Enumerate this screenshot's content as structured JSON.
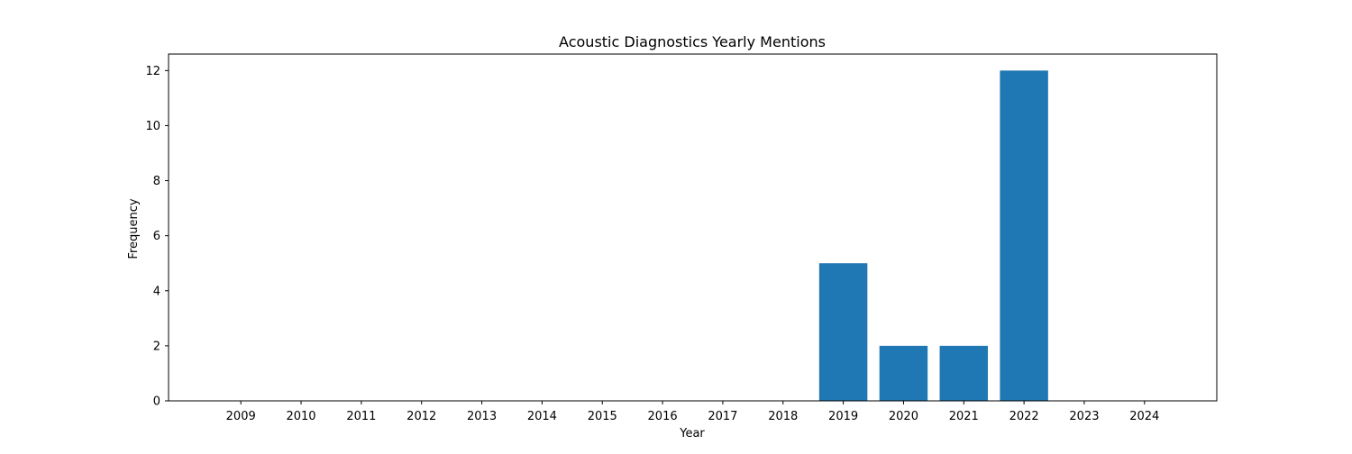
{
  "chart_data": {
    "type": "bar",
    "title": "Acoustic Diagnostics Yearly Mentions",
    "xlabel": "Year",
    "ylabel": "Frequency",
    "categories": [
      "2009",
      "2010",
      "2011",
      "2012",
      "2013",
      "2014",
      "2015",
      "2016",
      "2017",
      "2018",
      "2019",
      "2020",
      "2021",
      "2022",
      "2023",
      "2024"
    ],
    "values": [
      0,
      0,
      0,
      0,
      0,
      0,
      0,
      0,
      0,
      0,
      5,
      2,
      2,
      12,
      0,
      0
    ],
    "ylim": [
      0,
      12.6
    ],
    "yticks": [
      "0",
      "2",
      "4",
      "6",
      "8",
      "10",
      "12"
    ],
    "grid": false,
    "legend": "none",
    "bar_color": "#1f77b4"
  }
}
